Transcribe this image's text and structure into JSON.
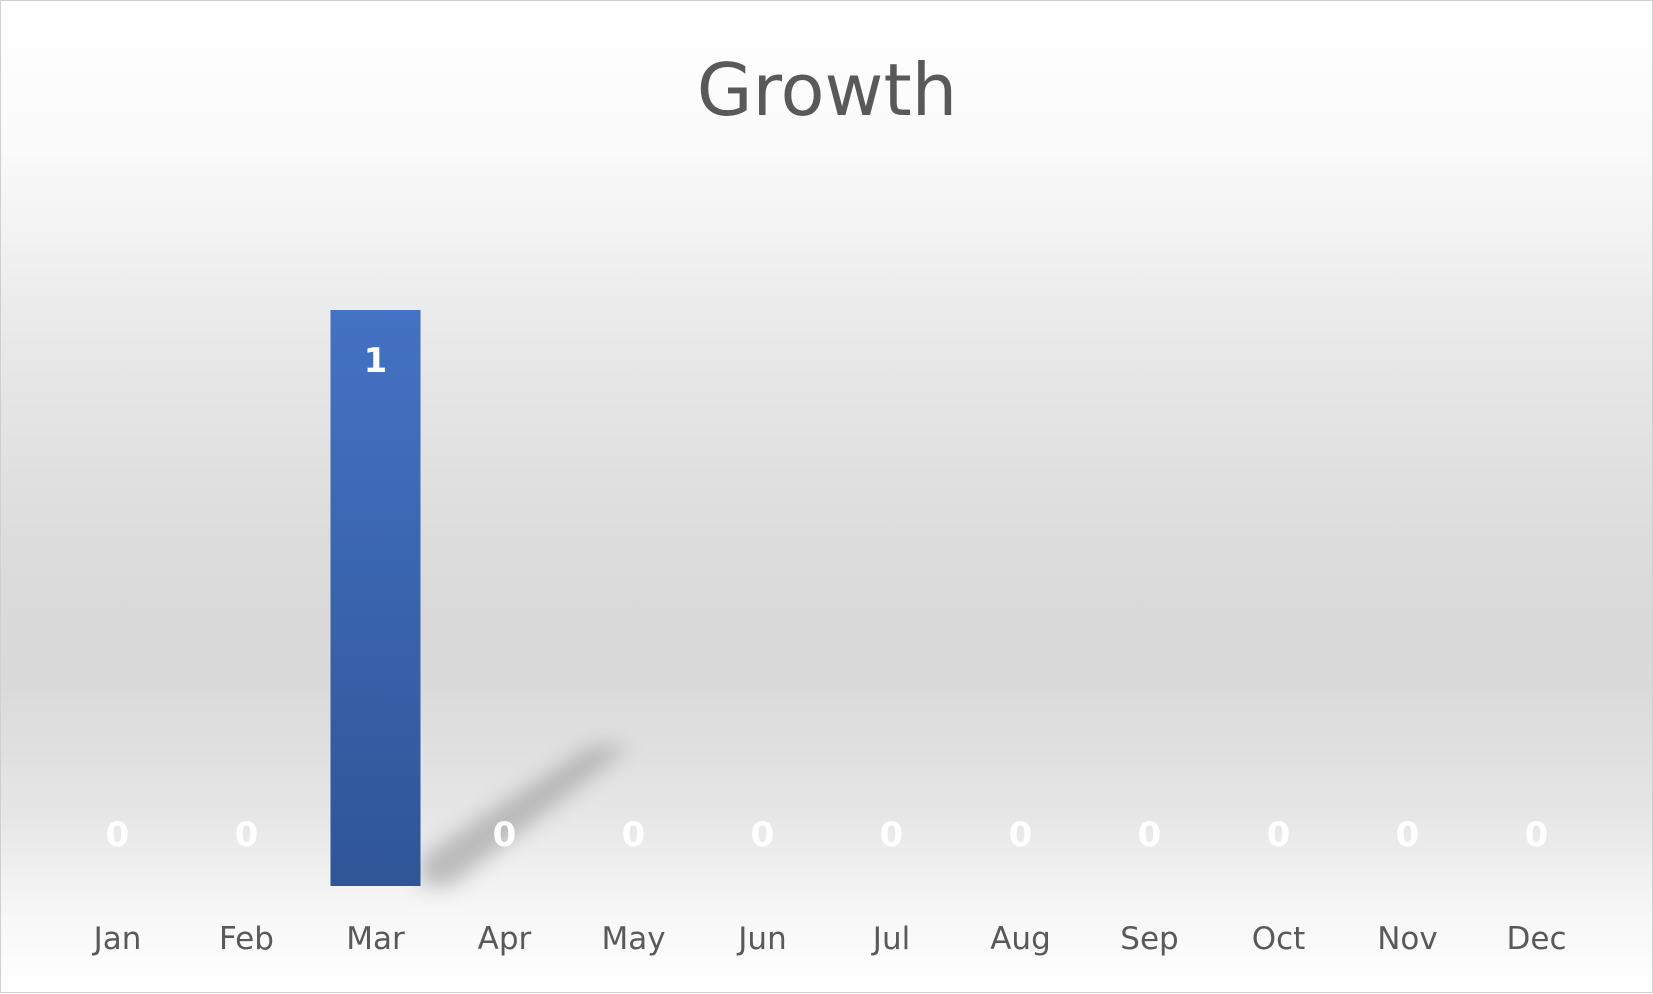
{
  "chart_data": {
    "type": "bar",
    "title": "Growth",
    "categories": [
      "Jan",
      "Feb",
      "Mar",
      "Apr",
      "May",
      "Jun",
      "Jul",
      "Aug",
      "Sep",
      "Oct",
      "Nov",
      "Dec"
    ],
    "series": [
      {
        "values": [
          0,
          0,
          1,
          0,
          0,
          0,
          0,
          0,
          0,
          0,
          0,
          0
        ]
      }
    ],
    "data_labels": [
      "0",
      "0",
      "1",
      "0",
      "0",
      "0",
      "0",
      "0",
      "0",
      "0",
      "0",
      "0"
    ],
    "ylim": [
      0,
      1.0
    ],
    "grid": false,
    "legend": "none",
    "colors": {
      "bar_top": "#4472c4",
      "bar_bottom": "#2f5597",
      "text": "#595959",
      "data_label": "#ffffff"
    }
  }
}
